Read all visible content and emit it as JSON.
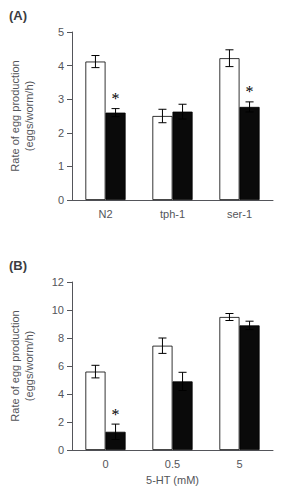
{
  "chart_data": [
    {
      "type": "bar",
      "title": "(A)",
      "categories": [
        "N2",
        "tph-1",
        "ser-1"
      ],
      "series": [
        {
          "color": "#ffffff",
          "values": [
            4.12,
            2.5,
            4.22
          ],
          "errors": [
            0.18,
            0.2,
            0.25
          ]
        },
        {
          "color": "#0a0a0a",
          "values": [
            2.6,
            2.63,
            2.77
          ],
          "errors": [
            0.12,
            0.22,
            0.15
          ]
        }
      ],
      "ylabel": "Rate of egg production\n(eggs/worm/h)",
      "ylim": [
        0,
        5
      ],
      "yticks": [
        0,
        1,
        2,
        3,
        4,
        5
      ],
      "grid": false,
      "annotations": [
        {
          "text": "*",
          "category": "N2",
          "series": 1
        },
        {
          "text": "*",
          "category": "ser-1",
          "series": 1
        }
      ]
    },
    {
      "type": "bar",
      "title": "(B)",
      "categories": [
        "0",
        "0.5",
        "5"
      ],
      "series": [
        {
          "color": "#ffffff",
          "values": [
            5.6,
            7.45,
            9.5
          ],
          "errors": [
            0.45,
            0.55,
            0.25
          ]
        },
        {
          "color": "#0a0a0a",
          "values": [
            1.3,
            4.9,
            8.9
          ],
          "errors": [
            0.55,
            0.65,
            0.3
          ]
        }
      ],
      "ylabel": "Rate of egg production\n(eggs/worm/h)",
      "xlabel": "5-HT (mM)",
      "ylim": [
        0,
        12
      ],
      "yticks": [
        0,
        2,
        4,
        6,
        8,
        10,
        12
      ],
      "grid": false,
      "annotations": [
        {
          "text": "*",
          "category": "0",
          "series": 1
        }
      ]
    }
  ]
}
